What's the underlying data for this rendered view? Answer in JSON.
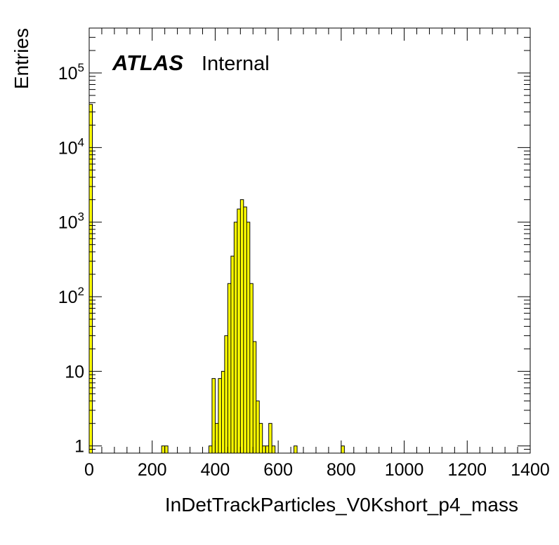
{
  "chart_data": {
    "type": "bar",
    "subtype": "histogram",
    "x_scale": "linear",
    "y_scale": "log",
    "xlim": [
      0,
      1400
    ],
    "ylim": [
      0.8,
      400000
    ],
    "bin_width": 10,
    "xlabel": "InDetTrackParticles_V0Kshort_p4_mass",
    "ylabel": "Entries",
    "atlas_label": "ATLAS",
    "status_label": "Internal",
    "fill_color": "#ffff00",
    "x_tick_labels": [
      "0",
      "200",
      "400",
      "600",
      "800",
      "1000",
      "1200",
      "1400"
    ],
    "x_tick_values": [
      0,
      200,
      400,
      600,
      800,
      1000,
      1200,
      1400
    ],
    "y_tick_labels": [
      {
        "base": "1",
        "exp": "",
        "value": 1
      },
      {
        "base": "10",
        "exp": "",
        "value": 10
      },
      {
        "base": "10",
        "exp": "2",
        "value": 100
      },
      {
        "base": "10",
        "exp": "3",
        "value": 1000
      },
      {
        "base": "10",
        "exp": "4",
        "value": 10000
      },
      {
        "base": "10",
        "exp": "5",
        "value": 100000
      }
    ],
    "bins": [
      {
        "x_low": 0,
        "count": 38000
      },
      {
        "x_low": 230,
        "count": 1
      },
      {
        "x_low": 240,
        "count": 1
      },
      {
        "x_low": 380,
        "count": 1
      },
      {
        "x_low": 390,
        "count": 8
      },
      {
        "x_low": 400,
        "count": 2
      },
      {
        "x_low": 410,
        "count": 8
      },
      {
        "x_low": 420,
        "count": 10
      },
      {
        "x_low": 430,
        "count": 30
      },
      {
        "x_low": 440,
        "count": 150
      },
      {
        "x_low": 450,
        "count": 350
      },
      {
        "x_low": 460,
        "count": 1000
      },
      {
        "x_low": 470,
        "count": 1500
      },
      {
        "x_low": 480,
        "count": 2000
      },
      {
        "x_low": 490,
        "count": 1600
      },
      {
        "x_low": 500,
        "count": 1000
      },
      {
        "x_low": 510,
        "count": 150
      },
      {
        "x_low": 520,
        "count": 25
      },
      {
        "x_low": 530,
        "count": 4
      },
      {
        "x_low": 540,
        "count": 2
      },
      {
        "x_low": 550,
        "count": 1
      },
      {
        "x_low": 560,
        "count": 1
      },
      {
        "x_low": 570,
        "count": 2
      },
      {
        "x_low": 580,
        "count": 1
      },
      {
        "x_low": 650,
        "count": 1
      },
      {
        "x_low": 800,
        "count": 1
      }
    ]
  }
}
